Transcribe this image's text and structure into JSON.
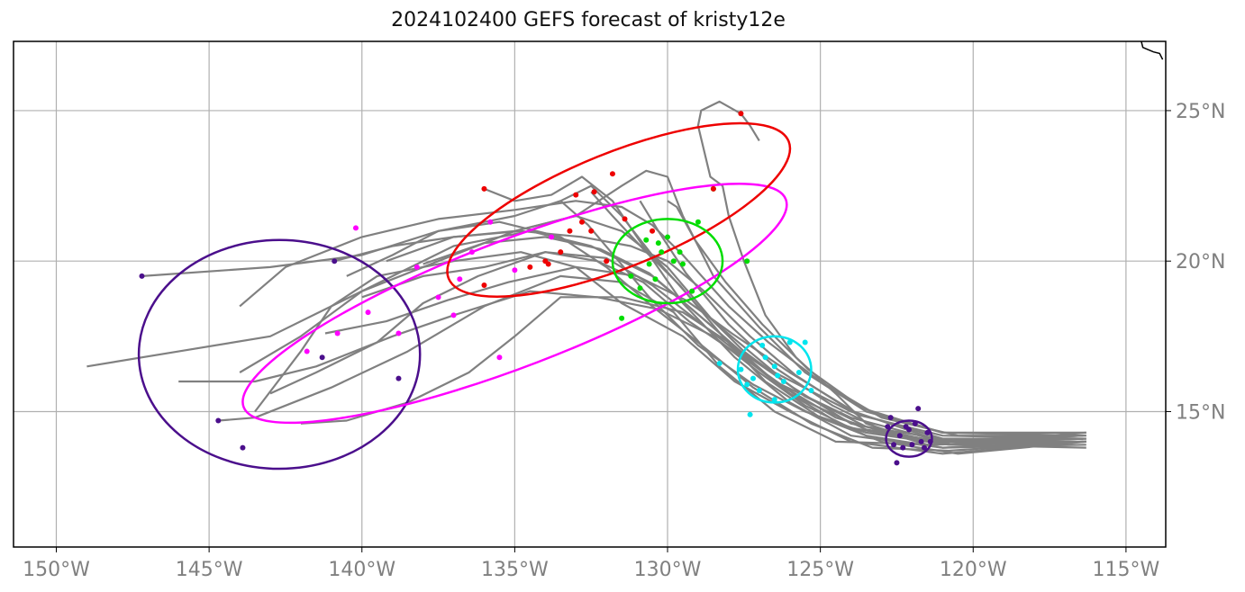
{
  "title": "2024102400 GEFS forecast of kristy12e",
  "map": {
    "lon_range": [
      -151.4,
      -113.7
    ],
    "lat_range": [
      10.5,
      27.3
    ],
    "x_ticks": [
      {
        "lon": -150,
        "label": "150°W"
      },
      {
        "lon": -145,
        "label": "145°W"
      },
      {
        "lon": -140,
        "label": "140°W"
      },
      {
        "lon": -135,
        "label": "135°W"
      },
      {
        "lon": -130,
        "label": "130°W"
      },
      {
        "lon": -125,
        "label": "125°W"
      },
      {
        "lon": -120,
        "label": "120°W"
      },
      {
        "lon": -115,
        "label": "115°W"
      }
    ],
    "y_ticks": [
      {
        "lat": 15,
        "label": "15°N"
      },
      {
        "lat": 20,
        "label": "20°N"
      },
      {
        "lat": 25,
        "label": "25°N"
      }
    ],
    "grid": true
  },
  "colors": {
    "track": "#808080",
    "grid": "#b0b0b0",
    "day1": "#4b0f8c",
    "day2": "#00e5ee",
    "day3": "#00dd00",
    "day4": "#ee0000",
    "day5": "#ff00ff",
    "day6": "#4b0f8c"
  },
  "coastline": [
    [
      -114.5,
      27.3
    ],
    [
      -114.45,
      27.1
    ],
    [
      -114.1,
      26.95
    ],
    [
      -113.9,
      26.9
    ],
    [
      -113.8,
      26.7
    ]
  ],
  "tracks": [
    [
      [
        -116.3,
        14.0
      ],
      [
        -121.0,
        14.0
      ],
      [
        -124.0,
        14.8
      ],
      [
        -126.5,
        16.0
      ],
      [
        -128.5,
        17.8
      ],
      [
        -130.5,
        19.5
      ],
      [
        -132.5,
        20.5
      ],
      [
        -134.5,
        21.0
      ],
      [
        -137.0,
        20.5
      ],
      [
        -139.0,
        19.5
      ],
      [
        -141.0,
        18.5
      ],
      [
        -143.0,
        17.5
      ],
      [
        -146.0,
        17.0
      ],
      [
        -149.0,
        16.5
      ]
    ],
    [
      [
        -116.3,
        14.1
      ],
      [
        -121.0,
        14.1
      ],
      [
        -124.0,
        15.0
      ],
      [
        -126.5,
        16.3
      ],
      [
        -128.5,
        18.0
      ],
      [
        -130.0,
        19.8
      ],
      [
        -131.5,
        21.0
      ],
      [
        -133.0,
        21.5
      ],
      [
        -135.0,
        21.0
      ],
      [
        -137.5,
        20.0
      ],
      [
        -140.0,
        19.0
      ],
      [
        -142.0,
        17.5
      ],
      [
        -144.0,
        16.3
      ]
    ],
    [
      [
        -116.4,
        14.2
      ],
      [
        -120.5,
        14.0
      ],
      [
        -123.5,
        14.5
      ],
      [
        -125.5,
        15.5
      ],
      [
        -127.5,
        17.0
      ],
      [
        -129.0,
        18.5
      ],
      [
        -130.5,
        20.2
      ],
      [
        -131.5,
        21.5
      ],
      [
        -132.5,
        22.5
      ],
      [
        -133.5,
        22.0
      ],
      [
        -135.0,
        21.5
      ],
      [
        -137.5,
        21.0
      ],
      [
        -140.0,
        20.2
      ],
      [
        -143.0,
        19.8
      ],
      [
        -147.2,
        19.5
      ]
    ],
    [
      [
        -116.3,
        14.0
      ],
      [
        -121.0,
        13.8
      ],
      [
        -124.0,
        14.2
      ],
      [
        -126.0,
        15.3
      ],
      [
        -127.8,
        16.8
      ],
      [
        -129.5,
        18.6
      ],
      [
        -130.8,
        20.5
      ],
      [
        -131.8,
        22.0
      ],
      [
        -132.8,
        22.8
      ],
      [
        -133.8,
        22.2
      ],
      [
        -135.0,
        22.0
      ],
      [
        -136.0,
        22.4
      ]
    ],
    [
      [
        -116.3,
        14.2
      ],
      [
        -121.0,
        14.3
      ],
      [
        -123.5,
        15.0
      ],
      [
        -125.5,
        16.3
      ],
      [
        -127.0,
        17.8
      ],
      [
        -128.5,
        19.5
      ],
      [
        -129.5,
        21.5
      ],
      [
        -130.0,
        22.8
      ],
      [
        -130.7,
        23.0
      ],
      [
        -131.5,
        22.5
      ],
      [
        -133.0,
        21.5
      ],
      [
        -135.0,
        21.0
      ],
      [
        -137.0,
        20.8
      ],
      [
        -139.0,
        20.5
      ],
      [
        -140.9,
        20.0
      ]
    ],
    [
      [
        -116.4,
        14.1
      ],
      [
        -121.2,
        13.9
      ],
      [
        -124.5,
        14.0
      ],
      [
        -126.5,
        15.0
      ],
      [
        -128.3,
        16.5
      ],
      [
        -129.8,
        18.3
      ],
      [
        -131.5,
        19.3
      ],
      [
        -133.5,
        19.5
      ],
      [
        -136.0,
        18.5
      ],
      [
        -138.5,
        17.0
      ],
      [
        -141.0,
        15.8
      ],
      [
        -143.5,
        14.8
      ],
      [
        -144.7,
        14.7
      ]
    ],
    [
      [
        -116.3,
        14.3
      ],
      [
        -120.0,
        14.0
      ],
      [
        -122.0,
        14.1
      ],
      [
        -123.5,
        14.6
      ],
      [
        -124.5,
        15.6
      ],
      [
        -125.8,
        16.8
      ],
      [
        -126.8,
        18.2
      ],
      [
        -127.5,
        20.0
      ],
      [
        -128.0,
        21.5
      ],
      [
        -128.2,
        22.5
      ],
      [
        -128.6,
        22.8
      ],
      [
        -129.0,
        24.5
      ],
      [
        -128.9,
        25.0
      ],
      [
        -128.3,
        25.3
      ],
      [
        -127.6,
        24.9
      ],
      [
        -127.3,
        24.5
      ],
      [
        -127.0,
        24.0
      ]
    ],
    [
      [
        -116.4,
        14.0
      ],
      [
        -121.0,
        13.6
      ],
      [
        -124.0,
        14.0
      ],
      [
        -126.0,
        15.0
      ],
      [
        -127.8,
        16.0
      ],
      [
        -129.5,
        17.5
      ],
      [
        -131.5,
        18.6
      ],
      [
        -133.0,
        19.8
      ],
      [
        -134.8,
        20.3
      ],
      [
        -137.0,
        20.0
      ],
      [
        -139.5,
        19.5
      ],
      [
        -141.0,
        18.5
      ],
      [
        -142.0,
        17.0
      ],
      [
        -143.5,
        15.0
      ]
    ],
    [
      [
        -116.3,
        13.9
      ],
      [
        -121.0,
        13.8
      ],
      [
        -123.5,
        14.2
      ],
      [
        -125.5,
        15.2
      ],
      [
        -127.0,
        16.3
      ],
      [
        -128.5,
        17.5
      ],
      [
        -130.3,
        18.4
      ],
      [
        -132.3,
        18.8
      ],
      [
        -134.5,
        19.0
      ],
      [
        -137.0,
        18.2
      ],
      [
        -139.0,
        17.5
      ],
      [
        -141.5,
        16.5
      ],
      [
        -143.5,
        16.0
      ],
      [
        -146.0,
        16.0
      ]
    ],
    [
      [
        -116.4,
        14.1
      ],
      [
        -121.5,
        13.9
      ],
      [
        -124.5,
        14.8
      ],
      [
        -126.5,
        16.0
      ],
      [
        -128.0,
        17.3
      ],
      [
        -129.5,
        18.3
      ],
      [
        -131.5,
        18.8
      ],
      [
        -133.5,
        18.8
      ],
      [
        -135.0,
        17.5
      ],
      [
        -136.5,
        16.3
      ],
      [
        -138.5,
        15.3
      ],
      [
        -140.5,
        14.7
      ],
      [
        -142.0,
        14.6
      ]
    ],
    [
      [
        -116.3,
        14.2
      ],
      [
        -120.5,
        14.2
      ],
      [
        -123.0,
        14.8
      ],
      [
        -125.0,
        16.0
      ],
      [
        -126.7,
        17.3
      ],
      [
        -128.0,
        18.5
      ],
      [
        -129.5,
        20.2
      ],
      [
        -130.5,
        21.2
      ],
      [
        -131.5,
        21.8
      ],
      [
        -133.0,
        22.0
      ],
      [
        -135.0,
        21.7
      ],
      [
        -137.5,
        21.4
      ],
      [
        -140.0,
        20.8
      ],
      [
        -142.5,
        19.8
      ],
      [
        -144.0,
        18.5
      ]
    ],
    [
      [
        -116.4,
        14.0
      ],
      [
        -120.8,
        13.7
      ],
      [
        -123.3,
        13.8
      ],
      [
        -125.3,
        14.6
      ],
      [
        -127.2,
        15.8
      ],
      [
        -129.0,
        17.3
      ],
      [
        -130.5,
        18.5
      ],
      [
        -132.0,
        19.8
      ],
      [
        -133.5,
        20.8
      ],
      [
        -135.5,
        21.3
      ],
      [
        -137.5,
        21.0
      ],
      [
        -139.0,
        20.2
      ],
      [
        -140.5,
        19.5
      ]
    ],
    [
      [
        -116.3,
        14.1
      ],
      [
        -121.0,
        14.2
      ],
      [
        -123.8,
        14.9
      ],
      [
        -125.8,
        16.2
      ],
      [
        -127.3,
        17.5
      ],
      [
        -128.8,
        19.0
      ],
      [
        -130.0,
        20.0
      ],
      [
        -131.2,
        20.5
      ],
      [
        -132.8,
        20.8
      ],
      [
        -134.8,
        21.0
      ],
      [
        -137.0,
        20.8
      ],
      [
        -139.2,
        20.0
      ]
    ],
    [
      [
        -116.4,
        14.2
      ],
      [
        -121.5,
        14.0
      ],
      [
        -124.2,
        14.5
      ],
      [
        -126.0,
        15.6
      ],
      [
        -127.5,
        16.8
      ],
      [
        -129.0,
        18.0
      ],
      [
        -130.5,
        19.2
      ],
      [
        -132.0,
        20.1
      ],
      [
        -134.0,
        20.3
      ],
      [
        -136.0,
        19.8
      ],
      [
        -138.0,
        19.5
      ],
      [
        -140.0,
        18.8
      ]
    ],
    [
      [
        -116.3,
        14.0
      ],
      [
        -120.5,
        13.6
      ],
      [
        -123.0,
        14.0
      ],
      [
        -125.0,
        14.8
      ],
      [
        -126.8,
        16.0
      ],
      [
        -128.2,
        17.5
      ],
      [
        -129.6,
        19.2
      ],
      [
        -130.7,
        20.3
      ],
      [
        -131.8,
        21.5
      ],
      [
        -132.5,
        22.3
      ]
    ],
    [
      [
        -116.4,
        14.1
      ],
      [
        -121.0,
        14.0
      ],
      [
        -123.5,
        14.4
      ],
      [
        -125.6,
        15.4
      ],
      [
        -127.4,
        16.7
      ],
      [
        -129.3,
        18.0
      ],
      [
        -130.8,
        19.3
      ],
      [
        -132.3,
        20.0
      ],
      [
        -134.0,
        20.3
      ],
      [
        -136.2,
        19.5
      ],
      [
        -138.0,
        18.6
      ],
      [
        -139.5,
        17.3
      ],
      [
        -141.5,
        16.3
      ],
      [
        -143.0,
        15.6
      ]
    ],
    [
      [
        -116.3,
        13.8
      ],
      [
        -120.8,
        13.9
      ],
      [
        -123.5,
        14.3
      ],
      [
        -125.5,
        15.0
      ],
      [
        -127.2,
        15.9
      ],
      [
        -129.0,
        17.2
      ],
      [
        -130.6,
        18.8
      ],
      [
        -131.6,
        20.0
      ],
      [
        -132.6,
        21.2
      ],
      [
        -133.5,
        22.0
      ]
    ],
    [
      [
        -116.4,
        14.2
      ],
      [
        -121.2,
        14.0
      ],
      [
        -124.0,
        14.6
      ],
      [
        -125.9,
        15.8
      ],
      [
        -127.6,
        17.0
      ],
      [
        -129.2,
        18.4
      ],
      [
        -130.6,
        19.6
      ],
      [
        -132.2,
        20.4
      ],
      [
        -134.0,
        20.8
      ],
      [
        -136.0,
        20.6
      ],
      [
        -138.0,
        19.9
      ]
    ],
    [
      [
        -116.3,
        14.0
      ],
      [
        -120.6,
        13.9
      ],
      [
        -122.8,
        14.3
      ],
      [
        -124.6,
        15.2
      ],
      [
        -126.4,
        16.4
      ],
      [
        -128.0,
        17.9
      ],
      [
        -129.4,
        19.6
      ],
      [
        -130.3,
        21.0
      ],
      [
        -130.9,
        22.0
      ]
    ],
    [
      [
        -116.4,
        14.1
      ],
      [
        -121.3,
        14.1
      ],
      [
        -123.9,
        15.0
      ],
      [
        -126.0,
        16.3
      ],
      [
        -127.9,
        17.6
      ],
      [
        -129.4,
        18.7
      ],
      [
        -131.0,
        19.5
      ],
      [
        -133.0,
        19.8
      ],
      [
        -135.2,
        19.3
      ],
      [
        -137.2,
        18.7
      ],
      [
        -139.2,
        18.0
      ],
      [
        -141.2,
        17.6
      ]
    ],
    [
      [
        -116.3,
        14.3
      ],
      [
        -121.0,
        14.3
      ],
      [
        -123.6,
        15.1
      ],
      [
        -125.4,
        16.4
      ],
      [
        -126.9,
        17.9
      ],
      [
        -128.1,
        19.3
      ],
      [
        -129.1,
        20.7
      ],
      [
        -129.7,
        21.8
      ],
      [
        -130.0,
        22.0
      ]
    ]
  ],
  "points": {
    "day1": [
      [
        -122.4,
        14.2
      ],
      [
        -122.1,
        14.4
      ],
      [
        -121.7,
        14.0
      ],
      [
        -122.6,
        13.9
      ],
      [
        -122.0,
        13.9
      ],
      [
        -121.5,
        14.3
      ],
      [
        -122.8,
        14.5
      ],
      [
        -121.9,
        14.6
      ],
      [
        -122.3,
        13.8
      ],
      [
        -121.4,
        14.0
      ],
      [
        -122.7,
        14.8
      ],
      [
        -121.8,
        15.1
      ],
      [
        -122.5,
        13.3
      ],
      [
        -121.6,
        13.8
      ],
      [
        -122.2,
        14.5
      ]
    ],
    "day2": [
      [
        -127.2,
        16.1
      ],
      [
        -126.5,
        16.5
      ],
      [
        -126.2,
        16.0
      ],
      [
        -127.0,
        15.7
      ],
      [
        -126.8,
        16.8
      ],
      [
        -125.7,
        16.3
      ],
      [
        -127.6,
        16.4
      ],
      [
        -126.0,
        17.3
      ],
      [
        -126.5,
        15.4
      ],
      [
        -125.3,
        15.7
      ],
      [
        -127.3,
        14.9
      ],
      [
        -128.3,
        16.6
      ],
      [
        -126.9,
        17.2
      ],
      [
        -125.5,
        17.3
      ],
      [
        -126.4,
        16.2
      ],
      [
        -127.4,
        15.9
      ]
    ],
    "day3": [
      [
        -130.6,
        19.9
      ],
      [
        -130.2,
        20.3
      ],
      [
        -129.8,
        20.0
      ],
      [
        -130.4,
        19.4
      ],
      [
        -130.9,
        19.1
      ],
      [
        -129.5,
        19.9
      ],
      [
        -130.0,
        20.8
      ],
      [
        -131.2,
        19.5
      ],
      [
        -129.2,
        19.0
      ],
      [
        -130.3,
        20.6
      ],
      [
        -131.5,
        18.1
      ],
      [
        -129.0,
        21.3
      ],
      [
        -127.4,
        20.0
      ],
      [
        -128.5,
        22.4
      ],
      [
        -130.7,
        20.7
      ],
      [
        -129.6,
        20.3
      ]
    ],
    "day4": [
      [
        -133.2,
        21.0
      ],
      [
        -132.8,
        21.3
      ],
      [
        -133.5,
        20.3
      ],
      [
        -132.5,
        21.0
      ],
      [
        -134.0,
        20.0
      ],
      [
        -131.8,
        22.9
      ],
      [
        -132.4,
        22.3
      ],
      [
        -130.5,
        21.0
      ],
      [
        -133.9,
        19.9
      ],
      [
        -131.4,
        21.4
      ],
      [
        -136.0,
        22.4
      ],
      [
        -127.6,
        24.9
      ],
      [
        -128.5,
        22.4
      ],
      [
        -134.5,
        19.8
      ],
      [
        -132.0,
        20.0
      ],
      [
        -133.0,
        22.2
      ],
      [
        -136.0,
        19.2
      ]
    ],
    "day5": [
      [
        -138.2,
        19.8
      ],
      [
        -136.8,
        19.4
      ],
      [
        -139.8,
        18.3
      ],
      [
        -137.5,
        18.8
      ],
      [
        -140.8,
        17.6
      ],
      [
        -135.8,
        21.3
      ],
      [
        -138.8,
        17.6
      ],
      [
        -141.8,
        17.0
      ],
      [
        -135.0,
        19.7
      ],
      [
        -136.4,
        20.3
      ],
      [
        -140.2,
        21.1
      ],
      [
        -135.5,
        16.8
      ],
      [
        -137.0,
        18.2
      ],
      [
        -133.8,
        20.8
      ]
    ],
    "day6": [
      [
        -147.2,
        19.5
      ],
      [
        -140.9,
        20.0
      ],
      [
        -144.7,
        14.7
      ],
      [
        -143.9,
        13.8
      ],
      [
        -141.3,
        16.8
      ],
      [
        -138.8,
        16.1
      ]
    ]
  },
  "ellipses": [
    {
      "color_key": "day6",
      "cx": -142.7,
      "cy": 16.9,
      "rx": 4.6,
      "ry": 3.8,
      "angle": 0
    },
    {
      "color_key": "day5",
      "cx": -135.0,
      "cy": 18.6,
      "rx": 9.5,
      "ry": 2.1,
      "angle": -21
    },
    {
      "color_key": "day4",
      "cx": -131.6,
      "cy": 21.7,
      "rx": 6.0,
      "ry": 1.9,
      "angle": -22
    },
    {
      "color_key": "day3",
      "cx": -130.0,
      "cy": 20.0,
      "rx": 1.8,
      "ry": 1.4,
      "angle": 0
    },
    {
      "color_key": "day2",
      "cx": -126.5,
      "cy": 16.4,
      "rx": 1.2,
      "ry": 1.1,
      "angle": 0
    },
    {
      "color_key": "day1",
      "cx": -122.1,
      "cy": 14.1,
      "rx": 0.75,
      "ry": 0.6,
      "angle": 0
    }
  ]
}
